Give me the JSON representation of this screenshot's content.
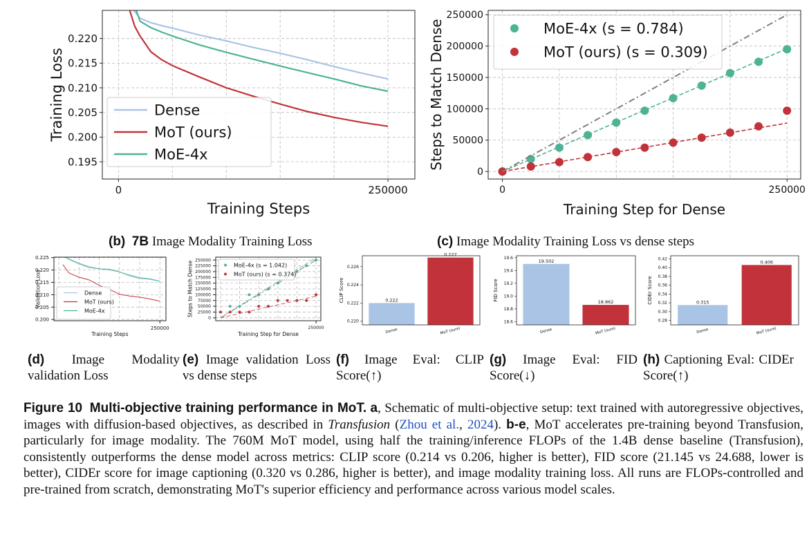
{
  "colors": {
    "dense": "#a9c4e4",
    "mot": "#c1323a",
    "moe": "#4db394",
    "ref": "#7f7f7f",
    "grid": "#b8b8b8",
    "blue_label": "#6b8fb5"
  },
  "captions": {
    "b_label": "(b)",
    "b_model": "7B",
    "b_text": "Image Modality Training Loss",
    "c_label": "(c)",
    "c_text": "Image Modality Training Loss vs dense steps",
    "d_label": "(d)",
    "d_text": "Image Modality validation Loss",
    "e_label": "(e)",
    "e_text": "Image validation Loss vs dense steps",
    "f_label": "(f)",
    "f_text": "Image Eval: CLIP Score(↑)",
    "g_label": "(g)",
    "g_text": "Image Eval: FID Score(↓)",
    "h_label": "(h)",
    "h_text": "Captioning Eval: CIDEr Score(↑)"
  },
  "figure_caption": {
    "label": "Figure 10",
    "title": "Multi-objective training performance in MoT.",
    "a": "a",
    "t1": ", Schematic of multi-objective setup: text trained with autoregressive objectives, images with diffusion-based objectives, as described in ",
    "transfusion": "Transfusion",
    "t2": " (",
    "cite": "Zhou et al.",
    "t3": ", ",
    "year": "2024",
    "t4": "). ",
    "be": "b-e",
    "t5": ", MoT accelerates pre-training beyond Transfusion, particularly for image modality. The 760M MoT model, using half the training/inference FLOPs of the 1.4B dense baseline (Transfusion), consistently outperforms the dense model across metrics: CLIP score (0.214 vs 0.206, higher is better), FID score (21.145 vs 24.688, lower is better), CIDEr score for image captioning (0.320 vs 0.286, higher is better), and image modality training loss. All runs are FLOPs-controlled and pre-trained from scratch, demonstrating MoT's superior efficiency and performance across various model scales."
  },
  "chart_data": [
    {
      "id": "b",
      "type": "line",
      "xlabel": "Training Steps",
      "ylabel": "Training Loss",
      "xlim": [
        -15000,
        275000
      ],
      "ylim": [
        0.1915,
        0.2257
      ],
      "xticks": [
        0,
        250000
      ],
      "xtick_labels": [
        "0",
        "250000"
      ],
      "yticks": [
        0.195,
        0.2,
        0.205,
        0.21,
        0.215,
        0.22
      ],
      "ytick_labels": [
        "0.195",
        "0.200",
        "0.205",
        "0.210",
        "0.215",
        "0.220"
      ],
      "grid": true,
      "legend": "lower-left",
      "series": [
        {
          "name": "Dense",
          "color": "dense",
          "x": [
            13000,
            20000,
            30000,
            40000,
            50000,
            75000,
            100000,
            125000,
            150000,
            175000,
            200000,
            225000,
            250000
          ],
          "y": [
            0.226,
            0.2241,
            0.2232,
            0.2226,
            0.2221,
            0.2207,
            0.2195,
            0.2182,
            0.217,
            0.2157,
            0.2143,
            0.213,
            0.2118
          ]
        },
        {
          "name": "MoT (ours)",
          "color": "mot",
          "x": [
            10000,
            15000,
            20000,
            30000,
            40000,
            50000,
            75000,
            100000,
            125000,
            150000,
            175000,
            200000,
            225000,
            250000
          ],
          "y": [
            0.226,
            0.2225,
            0.2205,
            0.2173,
            0.2157,
            0.2145,
            0.2122,
            0.21,
            0.2083,
            0.2067,
            0.2052,
            0.204,
            0.203,
            0.2022
          ]
        },
        {
          "name": "MoE-4x",
          "color": "moe",
          "x": [
            16000,
            20000,
            30000,
            40000,
            50000,
            75000,
            100000,
            125000,
            150000,
            175000,
            200000,
            225000,
            250000
          ],
          "y": [
            0.226,
            0.2235,
            0.2222,
            0.2213,
            0.2205,
            0.2187,
            0.2172,
            0.2158,
            0.2144,
            0.2131,
            0.2118,
            0.2104,
            0.2093
          ]
        }
      ]
    },
    {
      "id": "c",
      "type": "scatter",
      "xlabel": "Training Step for Dense",
      "ylabel": "Steps to Match Dense",
      "xlim": [
        -12500,
        262000
      ],
      "ylim": [
        -12000,
        257000
      ],
      "xticks": [
        0,
        250000
      ],
      "xtick_labels": [
        "0",
        "250000"
      ],
      "yticks": [
        0,
        50000,
        100000,
        150000,
        200000,
        250000
      ],
      "ytick_labels": [
        "0",
        "50000",
        "100000",
        "150000",
        "200000",
        "250000"
      ],
      "grid": true,
      "legend": "top-left",
      "series": [
        {
          "name": "MoE-4x",
          "slope": 0.784,
          "label_s": "(s = 0.784)",
          "color": "moe",
          "x": [
            0,
            25000,
            50000,
            75000,
            100000,
            125000,
            150000,
            175000,
            200000,
            225000,
            250000
          ],
          "y": [
            0,
            20000,
            38000,
            58000,
            78000,
            97000,
            117000,
            137000,
            157000,
            175000,
            195000
          ]
        },
        {
          "name": "MoT (ours)",
          "slope": 0.309,
          "label_s": "(s = 0.309)",
          "color": "mot",
          "x": [
            0,
            25000,
            50000,
            75000,
            100000,
            125000,
            150000,
            175000,
            200000,
            225000,
            250000
          ],
          "y": [
            0,
            8000,
            15000,
            23000,
            31000,
            38000,
            46000,
            54000,
            62000,
            72000,
            97000
          ]
        },
        {
          "name": "y = x",
          "color": "ref",
          "x": [
            0,
            250000
          ],
          "y": [
            0,
            250000
          ]
        }
      ]
    },
    {
      "id": "d",
      "type": "line",
      "xlabel": "Training Steps",
      "ylabel": "Validation Loss",
      "xlim": [
        -12000,
        265000
      ],
      "ylim": [
        0.1995,
        0.2252
      ],
      "xticks": [
        250000
      ],
      "xtick_labels": [
        "250000"
      ],
      "yticks": [
        0.2,
        0.205,
        0.21,
        0.215,
        0.22,
        0.225
      ],
      "ytick_labels": [
        "0.200",
        "0.205",
        "0.210",
        "0.215",
        "0.220",
        "0.225"
      ],
      "grid": true,
      "legend": "lower-left",
      "series": [
        {
          "name": "Dense",
          "color": "dense",
          "x": [
            10000,
            25000,
            50000,
            75000,
            100000,
            125000,
            150000,
            175000,
            200000,
            225000,
            250000
          ],
          "y": [
            0.226,
            0.2245,
            0.2228,
            0.2214,
            0.2205,
            0.22,
            0.2192,
            0.218,
            0.217,
            0.2165,
            0.2155
          ]
        },
        {
          "name": "MoT (ours)",
          "color": "mot",
          "x": [
            10000,
            25000,
            50000,
            75000,
            100000,
            125000,
            150000,
            175000,
            200000,
            225000,
            250000
          ],
          "y": [
            0.2222,
            0.2188,
            0.2171,
            0.216,
            0.2138,
            0.2122,
            0.2102,
            0.2095,
            0.209,
            0.2083,
            0.2074
          ]
        },
        {
          "name": "MoE-4x",
          "color": "moe",
          "x": [
            10000,
            25000,
            50000,
            75000,
            100000,
            125000,
            150000,
            175000,
            200000,
            225000,
            250000
          ],
          "y": [
            0.2258,
            0.2243,
            0.2225,
            0.221,
            0.2205,
            0.2203,
            0.2193,
            0.2177,
            0.2166,
            0.2163,
            0.2155
          ]
        }
      ]
    },
    {
      "id": "e",
      "type": "scatter",
      "xlabel": "Training Step for Dense",
      "ylabel": "Steps to Match Dense",
      "xlim": [
        -12500,
        262500
      ],
      "ylim": [
        -12500,
        262500
      ],
      "xticks": [
        250000
      ],
      "xtick_labels": [
        "250000"
      ],
      "yticks": [
        0,
        25000,
        50000,
        75000,
        100000,
        125000,
        150000,
        175000,
        200000,
        225000,
        250000
      ],
      "ytick_labels": [
        "0",
        "25000",
        "50000",
        "75000",
        "100000",
        "125000",
        "150000",
        "175000",
        "200000",
        "225000",
        "250000"
      ],
      "grid": true,
      "legend": "top-left",
      "series": [
        {
          "name": "MoE-4x",
          "slope": 1.042,
          "label_s": "(s = 1.042)",
          "color": "moe",
          "x": [
            0,
            25000,
            50000,
            75000,
            100000,
            125000,
            150000,
            175000,
            200000,
            225000,
            250000
          ],
          "y": [
            25000,
            50000,
            50000,
            100000,
            100000,
            125000,
            150000,
            175000,
            200000,
            225000,
            250000
          ]
        },
        {
          "name": "MoT (ours)",
          "slope": 0.374,
          "label_s": "(s = 0.374)",
          "color": "mot",
          "x": [
            0,
            25000,
            50000,
            75000,
            100000,
            125000,
            150000,
            175000,
            200000,
            225000,
            250000
          ],
          "y": [
            25000,
            25000,
            25000,
            25000,
            50000,
            50000,
            75000,
            75000,
            75000,
            75000,
            100000
          ]
        },
        {
          "name": "y = x",
          "color": "ref",
          "x": [
            0,
            250000
          ],
          "y": [
            0,
            250000
          ]
        }
      ]
    },
    {
      "id": "f",
      "type": "bar",
      "ylabel": "CLIP Score",
      "categories": [
        "Dense",
        "MoT (ours)"
      ],
      "values": [
        0.222,
        0.227
      ],
      "value_labels": [
        "0.222",
        "0.227"
      ],
      "ylim": [
        0.2196,
        0.2272
      ],
      "yticks": [
        0.22,
        0.222,
        0.224,
        0.226
      ],
      "ytick_labels": [
        "0.220",
        "0.222",
        "0.224",
        "0.226"
      ]
    },
    {
      "id": "g",
      "type": "bar",
      "ylabel": "FID Score",
      "categories": [
        "Dense",
        "MoT (ours)"
      ],
      "values": [
        19.502,
        18.862
      ],
      "value_labels": [
        "19.502",
        "18.862"
      ],
      "ylim": [
        18.55,
        19.63
      ],
      "yticks": [
        18.6,
        18.8,
        19.0,
        19.2,
        19.4,
        19.6
      ],
      "ytick_labels": [
        "18.6",
        "18.8",
        "19.0",
        "19.2",
        "19.4",
        "19.6"
      ]
    },
    {
      "id": "h",
      "type": "bar",
      "ylabel": "CIDEr Score",
      "categories": [
        "Dense",
        "MoT (ours)"
      ],
      "values": [
        0.315,
        0.406
      ],
      "value_labels": [
        "0.315",
        "0.406"
      ],
      "ylim": [
        0.27,
        0.427
      ],
      "yticks": [
        0.28,
        0.3,
        0.32,
        0.34,
        0.36,
        0.38,
        0.4,
        0.42
      ],
      "ytick_labels": [
        "0.28",
        "0.30",
        "0.32",
        "0.34",
        "0.36",
        "0.38",
        "0.40",
        "0.42"
      ]
    }
  ]
}
